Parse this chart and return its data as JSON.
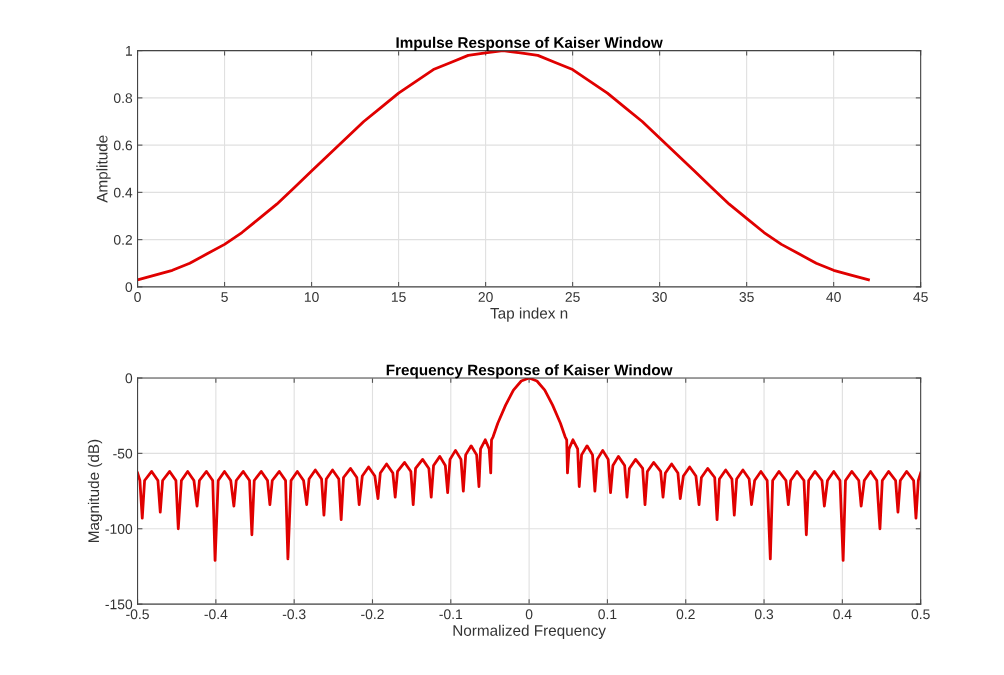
{
  "chart_data": [
    {
      "type": "line",
      "title": "Impulse Response of Kaiser Window",
      "xlabel": "Tap index n",
      "ylabel": "Amplitude",
      "x": [
        0,
        1,
        2,
        3,
        4,
        5,
        6,
        7,
        8,
        9,
        10,
        11,
        12,
        13,
        14,
        15,
        16,
        17,
        18,
        19,
        20,
        21,
        22,
        23,
        24,
        25,
        26,
        27,
        28,
        29,
        30,
        31,
        32,
        33,
        34,
        35,
        36,
        37,
        38,
        39,
        40,
        41,
        42
      ],
      "series": [
        {
          "color": "#e00000",
          "values": [
            0.03,
            0.05,
            0.07,
            0.1,
            0.14,
            0.18,
            0.23,
            0.29,
            0.35,
            0.42,
            0.49,
            0.56,
            0.63,
            0.7,
            0.76,
            0.82,
            0.87,
            0.92,
            0.95,
            0.98,
            0.99,
            1.0,
            0.99,
            0.98,
            0.95,
            0.92,
            0.87,
            0.82,
            0.76,
            0.7,
            0.63,
            0.56,
            0.49,
            0.42,
            0.35,
            0.29,
            0.23,
            0.18,
            0.14,
            0.1,
            0.07,
            0.05,
            0.03
          ]
        }
      ],
      "xlim": [
        0,
        45
      ],
      "xticks": [
        0,
        5,
        10,
        15,
        20,
        25,
        30,
        35,
        40,
        45
      ],
      "ylim": [
        0,
        1
      ],
      "yticks": [
        0,
        0.2,
        0.4,
        0.6,
        0.8,
        1
      ],
      "grid": true,
      "legend": false
    },
    {
      "type": "line",
      "title": "Frequency Response of Kaiser Window",
      "xlabel": "Normalized Frequency",
      "ylabel": "Magnitude (dB)",
      "x": [
        -0.5,
        -0.497,
        -0.494,
        -0.491,
        -0.482,
        -0.474,
        -0.471,
        -0.468,
        -0.459,
        -0.451,
        -0.448,
        -0.444,
        -0.436,
        -0.428,
        -0.424,
        -0.421,
        -0.412,
        -0.404,
        -0.401,
        -0.397,
        -0.389,
        -0.381,
        -0.377,
        -0.374,
        -0.365,
        -0.357,
        -0.354,
        -0.351,
        -0.342,
        -0.334,
        -0.331,
        -0.328,
        -0.319,
        -0.311,
        -0.308,
        -0.304,
        -0.296,
        -0.288,
        -0.284,
        -0.281,
        -0.273,
        -0.265,
        -0.262,
        -0.259,
        -0.251,
        -0.243,
        -0.24,
        -0.237,
        -0.228,
        -0.22,
        -0.217,
        -0.213,
        -0.205,
        -0.197,
        -0.193,
        -0.19,
        -0.182,
        -0.174,
        -0.171,
        -0.168,
        -0.159,
        -0.151,
        -0.148,
        -0.145,
        -0.136,
        -0.128,
        -0.125,
        -0.122,
        -0.114,
        -0.107,
        -0.104,
        -0.101,
        -0.094,
        -0.087,
        -0.084,
        -0.081,
        -0.074,
        -0.067,
        -0.064,
        -0.062,
        -0.056,
        -0.051,
        -0.049,
        -0.048,
        -0.046,
        -0.04,
        -0.03,
        -0.02,
        -0.01,
        0,
        0.01,
        0.02,
        0.03,
        0.04,
        0.046,
        0.048,
        0.049,
        0.051,
        0.056,
        0.062,
        0.064,
        0.067,
        0.074,
        0.081,
        0.084,
        0.087,
        0.094,
        0.101,
        0.104,
        0.107,
        0.114,
        0.122,
        0.125,
        0.128,
        0.136,
        0.145,
        0.148,
        0.151,
        0.159,
        0.168,
        0.171,
        0.174,
        0.182,
        0.19,
        0.193,
        0.197,
        0.205,
        0.213,
        0.217,
        0.22,
        0.228,
        0.237,
        0.24,
        0.243,
        0.251,
        0.259,
        0.262,
        0.265,
        0.273,
        0.281,
        0.284,
        0.288,
        0.296,
        0.304,
        0.308,
        0.311,
        0.319,
        0.328,
        0.331,
        0.334,
        0.342,
        0.351,
        0.354,
        0.357,
        0.365,
        0.374,
        0.377,
        0.381,
        0.389,
        0.397,
        0.401,
        0.404,
        0.412,
        0.421,
        0.424,
        0.428,
        0.436,
        0.444,
        0.448,
        0.451,
        0.459,
        0.468,
        0.471,
        0.474,
        0.482,
        0.491,
        0.494,
        0.497,
        0.5
      ],
      "series": [
        {
          "color": "#e00000",
          "values": [
            -63,
            -68,
            -93,
            -68,
            -62,
            -68,
            -89,
            -68,
            -62,
            -68,
            -100,
            -68,
            -62,
            -68,
            -85,
            -68,
            -62,
            -68,
            -121,
            -68,
            -62,
            -68,
            -85,
            -68,
            -62,
            -68,
            -104,
            -68,
            -62,
            -68,
            -84,
            -68,
            -62,
            -68,
            -120,
            -68,
            -62,
            -68,
            -84,
            -67,
            -61,
            -67,
            -91,
            -67,
            -61,
            -67,
            -94,
            -66,
            -60,
            -66,
            -84,
            -65,
            -59,
            -65,
            -80,
            -63,
            -57,
            -63,
            -79,
            -62,
            -56,
            -62,
            -84,
            -60,
            -54,
            -60,
            -79,
            -58,
            -52,
            -58,
            -76,
            -54,
            -48,
            -54,
            -75,
            -51,
            -45,
            -51,
            -72,
            -47,
            -41,
            -47,
            -63,
            -41,
            -39,
            -30,
            -18,
            -8,
            -2,
            0,
            -2,
            -8,
            -18,
            -30,
            -39,
            -41,
            -63,
            -47,
            -41,
            -47,
            -72,
            -51,
            -45,
            -51,
            -75,
            -54,
            -48,
            -54,
            -76,
            -58,
            -52,
            -58,
            -79,
            -60,
            -54,
            -60,
            -84,
            -62,
            -56,
            -62,
            -79,
            -63,
            -57,
            -63,
            -80,
            -65,
            -59,
            -65,
            -84,
            -66,
            -60,
            -66,
            -94,
            -67,
            -61,
            -67,
            -91,
            -67,
            -61,
            -67,
            -84,
            -68,
            -62,
            -68,
            -120,
            -68,
            -62,
            -68,
            -84,
            -68,
            -62,
            -68,
            -104,
            -68,
            -62,
            -68,
            -85,
            -68,
            -62,
            -68,
            -121,
            -68,
            -62,
            -68,
            -85,
            -68,
            -62,
            -68,
            -100,
            -68,
            -62,
            -68,
            -89,
            -68,
            -62,
            -68,
            -93,
            -68,
            -63
          ]
        }
      ],
      "xlim": [
        -0.5,
        0.5
      ],
      "xticks": [
        -0.5,
        -0.4,
        -0.3,
        -0.2,
        -0.1,
        0,
        0.1,
        0.2,
        0.3,
        0.4,
        0.5
      ],
      "ylim": [
        -150,
        0
      ],
      "yticks": [
        -150,
        -100,
        -50,
        0
      ],
      "grid": true,
      "legend": false
    }
  ]
}
